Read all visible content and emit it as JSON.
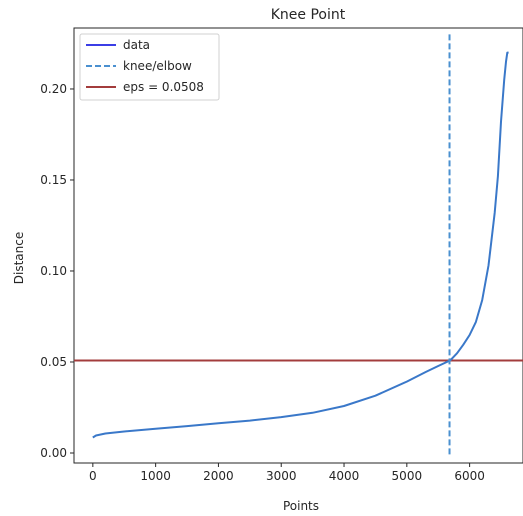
{
  "chart_data": {
    "type": "line",
    "title": "Knee Point",
    "xlabel": "Points",
    "ylabel": "Distance",
    "xlim": [
      -300,
      6850
    ],
    "ylim": [
      -0.0055,
      0.2335
    ],
    "xticks": [
      0,
      1000,
      2000,
      3000,
      4000,
      5000,
      6000
    ],
    "yticks": [
      0.0,
      0.05,
      0.1,
      0.15,
      0.2
    ],
    "ytick_labels": [
      "0.00",
      "0.05",
      "0.10",
      "0.15",
      "0.20"
    ],
    "grid": false,
    "legend": {
      "placement": "top-left"
    },
    "series": [
      {
        "name": "data",
        "style": "solid",
        "color": "#3a78c9",
        "legend_color": "#3b3ee6",
        "x": [
          0,
          50,
          200,
          500,
          1000,
          1500,
          2000,
          2500,
          3000,
          3500,
          4000,
          4500,
          5000,
          5300,
          5500,
          5650,
          5700,
          5800,
          5900,
          6000,
          6100,
          6200,
          6300,
          6400,
          6450,
          6500,
          6550,
          6580,
          6600,
          6610,
          6620
        ],
        "y": [
          0.0085,
          0.0096,
          0.0107,
          0.0118,
          0.0133,
          0.0148,
          0.0163,
          0.0178,
          0.0197,
          0.0221,
          0.0258,
          0.0315,
          0.0392,
          0.0445,
          0.0478,
          0.0502,
          0.0512,
          0.0548,
          0.0595,
          0.0648,
          0.072,
          0.084,
          0.103,
          0.132,
          0.152,
          0.182,
          0.205,
          0.215,
          0.22,
          0.22,
          0.22
        ]
      }
    ],
    "knee": {
      "name": "knee/elbow",
      "x": 5680,
      "y_range": [
        -0.0015,
        0.23
      ],
      "color": "#4a90d0",
      "style": "dashed"
    },
    "eps": {
      "name": "eps = 0.0508",
      "y": 0.0508,
      "color": "#a33c3c",
      "style": "solid"
    }
  }
}
